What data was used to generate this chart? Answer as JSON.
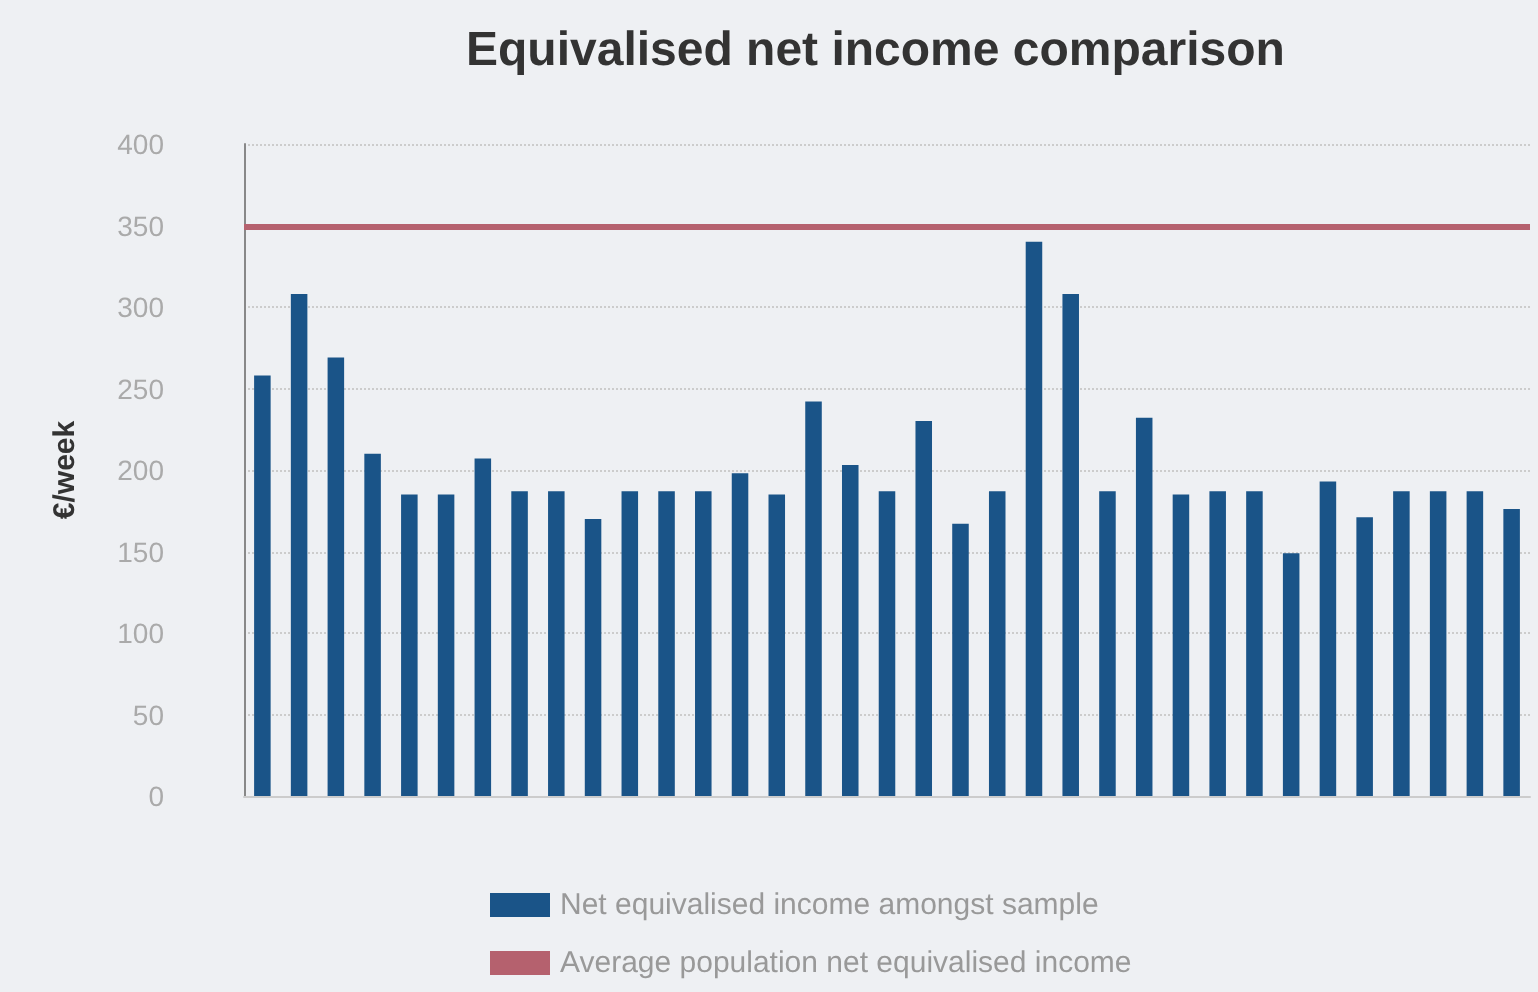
{
  "chart_data": {
    "type": "bar",
    "title": "Equivalised net income comparison",
    "ylabel": "€/week",
    "categories": [
      null,
      null,
      null,
      null,
      null,
      null,
      null,
      null,
      null,
      null,
      null,
      null,
      null,
      null,
      null,
      null,
      null,
      null,
      null,
      null,
      null,
      null,
      null,
      null,
      null,
      null,
      null,
      null,
      null,
      null,
      null,
      null,
      null,
      null,
      null
    ],
    "series": [
      {
        "name": "Net equivalised income amongst sample",
        "color": "#1a5488",
        "values": [
          258,
          308,
          269,
          210,
          185,
          185,
          207,
          187,
          187,
          170,
          187,
          187,
          187,
          198,
          185,
          242,
          203,
          187,
          230,
          167,
          187,
          340,
          308,
          187,
          232,
          185,
          187,
          187,
          149,
          193,
          171,
          187,
          187,
          187,
          176
        ]
      }
    ],
    "ref_lines": [
      {
        "axis": "y",
        "value": 350,
        "label": "Average population net equivalised income",
        "color": "#b5616e"
      }
    ],
    "ylim": [
      0,
      400
    ],
    "yticks": [
      0,
      50,
      100,
      150,
      200,
      250,
      300,
      350,
      400
    ],
    "grid": "y",
    "legend": "bottom"
  }
}
